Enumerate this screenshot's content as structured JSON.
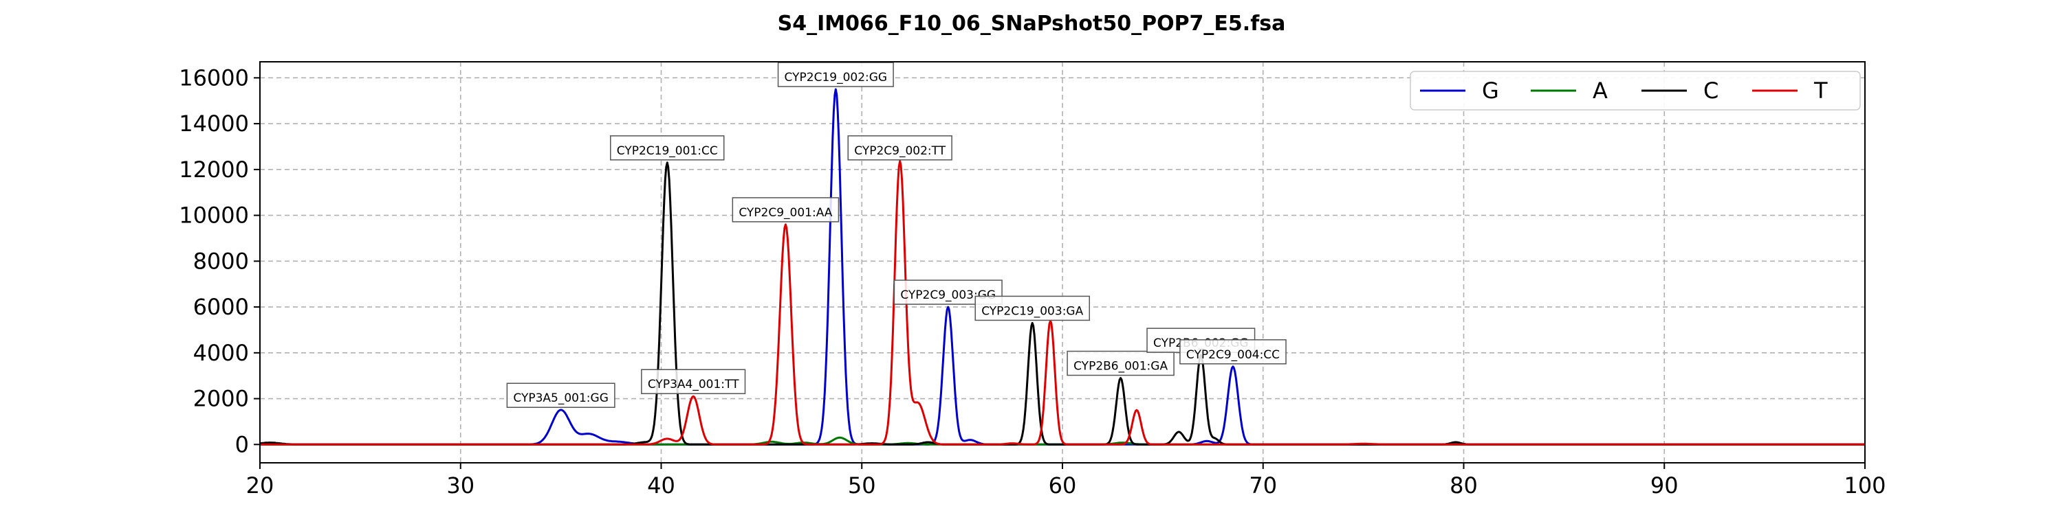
{
  "chart_data": {
    "type": "line",
    "title": "S4_IM066_F10_06_SNaPshot50_POP7_E5.fsa",
    "xlabel": "",
    "ylabel": "",
    "xlim": [
      20,
      100
    ],
    "ylim": [
      -800,
      16700
    ],
    "xticks": [
      20,
      30,
      40,
      50,
      60,
      70,
      80,
      90,
      100
    ],
    "yticks": [
      0,
      2000,
      4000,
      6000,
      8000,
      10000,
      12000,
      14000,
      16000
    ],
    "grid": true,
    "legend_position": "top-right",
    "series": [
      {
        "name": "G",
        "color": "#0000cc",
        "peaks": [
          [
            35.0,
            1500,
            0.45
          ],
          [
            36.4,
            450,
            0.5
          ],
          [
            37.8,
            120,
            0.6
          ],
          [
            48.7,
            15500,
            0.28
          ],
          [
            54.3,
            6000,
            0.25
          ],
          [
            55.4,
            200,
            0.3
          ],
          [
            68.5,
            3400,
            0.26
          ],
          [
            67.2,
            150,
            0.3
          ]
        ]
      },
      {
        "name": "A",
        "color": "#007700",
        "peaks": [
          [
            45.5,
            120,
            0.4
          ],
          [
            47.1,
            80,
            0.4
          ],
          [
            48.9,
            300,
            0.35
          ],
          [
            52.3,
            60,
            0.4
          ],
          [
            63.0,
            80,
            0.4
          ]
        ]
      },
      {
        "name": "C",
        "color": "#000000",
        "peaks": [
          [
            20.5,
            80,
            0.5
          ],
          [
            40.3,
            12300,
            0.28
          ],
          [
            39.2,
            100,
            0.4
          ],
          [
            50.5,
            50,
            0.4
          ],
          [
            53.3,
            100,
            0.3
          ],
          [
            58.5,
            5300,
            0.22
          ],
          [
            62.9,
            2900,
            0.22
          ],
          [
            65.8,
            550,
            0.25
          ],
          [
            66.9,
            3900,
            0.22
          ],
          [
            67.6,
            250,
            0.2
          ],
          [
            79.6,
            100,
            0.25
          ]
        ]
      },
      {
        "name": "T",
        "color": "#dd0000",
        "peaks": [
          [
            40.3,
            250,
            0.35
          ],
          [
            41.6,
            2100,
            0.3
          ],
          [
            46.2,
            9600,
            0.28
          ],
          [
            51.9,
            12300,
            0.26
          ],
          [
            52.8,
            1800,
            0.35
          ],
          [
            59.4,
            5400,
            0.22
          ],
          [
            63.7,
            1500,
            0.22
          ],
          [
            57.5,
            50,
            0.3
          ],
          [
            75.0,
            30,
            0.5
          ]
        ]
      }
    ],
    "annotations": [
      {
        "text": "CYP3A5_001:GG",
        "x": 35.0,
        "y": 1500
      },
      {
        "text": "CYP2C19_001:CC",
        "x": 40.3,
        "y": 12300
      },
      {
        "text": "CYP3A4_001:TT",
        "x": 41.6,
        "y": 2100
      },
      {
        "text": "CYP2C9_001:AA",
        "x": 46.2,
        "y": 9600
      },
      {
        "text": "CYP2C19_002:GG",
        "x": 48.7,
        "y": 15500
      },
      {
        "text": "CYP2C9_002:TT",
        "x": 51.9,
        "y": 12300
      },
      {
        "text": "CYP2C9_003:GG",
        "x": 54.3,
        "y": 6000
      },
      {
        "text": "CYP2C19_003:GA",
        "x": 58.5,
        "y": 5300
      },
      {
        "text": "CYP2B6_001:GA",
        "x": 62.9,
        "y": 2900
      },
      {
        "text": "CYP2B6_002:GG",
        "x": 66.9,
        "y": 3900
      },
      {
        "text": "CYP2C9_004:CC",
        "x": 68.5,
        "y": 3400
      }
    ]
  }
}
